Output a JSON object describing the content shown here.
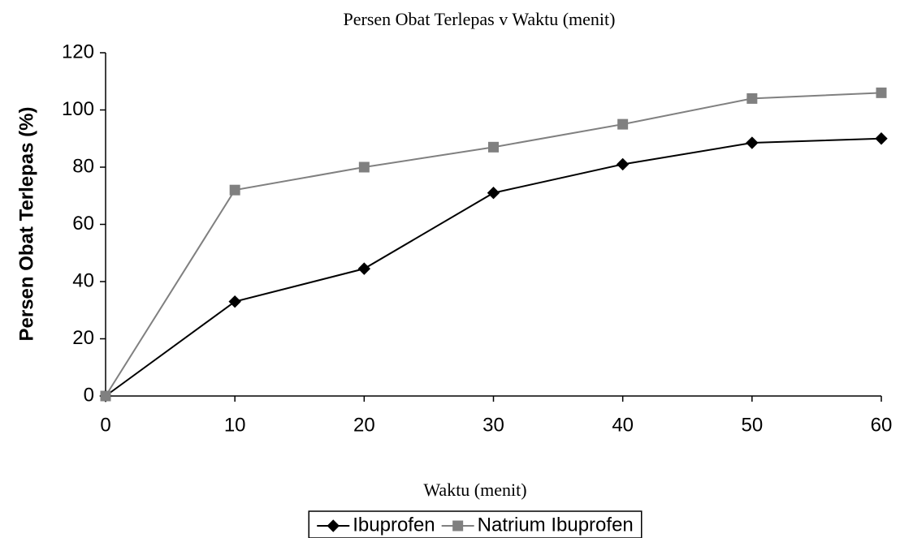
{
  "chart_data": {
    "type": "line",
    "title": "Persen Obat Terlepas v Waktu (menit)",
    "x_label": "Waktu (menit)",
    "y_label": "Persen Obat Terlepas (%)",
    "x": [
      0,
      10,
      20,
      30,
      40,
      50,
      60
    ],
    "series": [
      {
        "name": "Ibuprofen",
        "color": "#000000",
        "marker": "diamond",
        "values": [
          0,
          33,
          44.5,
          71,
          81,
          88.5,
          90
        ]
      },
      {
        "name": "Natrium Ibuprofen",
        "color": "#808080",
        "marker": "square",
        "values": [
          0,
          72,
          80,
          87,
          95,
          104,
          106
        ]
      }
    ],
    "xlim": [
      0,
      60
    ],
    "xticks": [
      0,
      10,
      20,
      30,
      40,
      50,
      60
    ],
    "ylim": [
      0,
      120
    ],
    "yticks": [
      0,
      20,
      40,
      60,
      80,
      100,
      120
    ],
    "grid": false,
    "legend": "bottom"
  }
}
